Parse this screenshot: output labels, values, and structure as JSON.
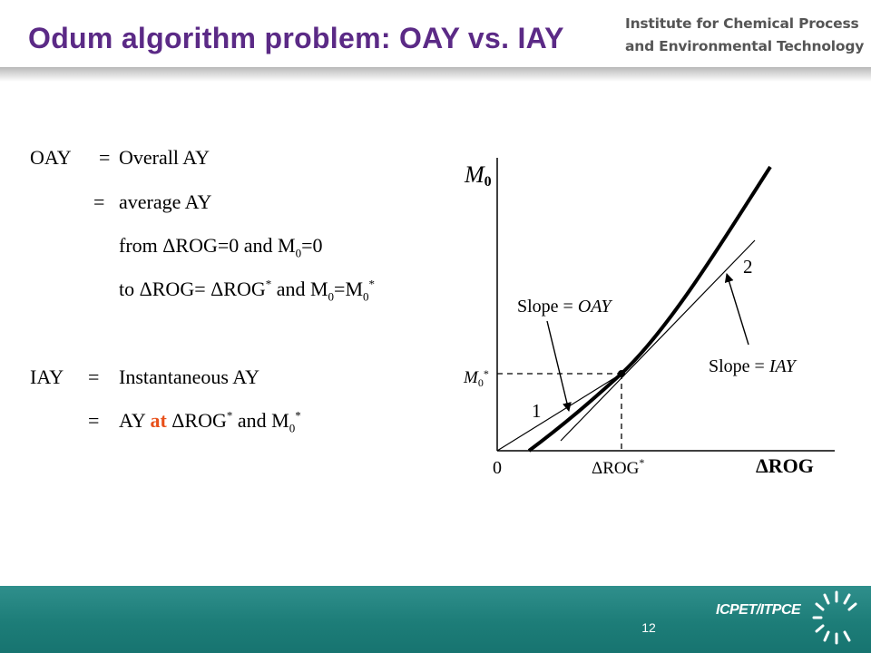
{
  "title": "Odum algorithm problem: OAY vs. IAY",
  "institute": {
    "line1": "Institute for Chemical Process",
    "line2": "and Environmental Technology"
  },
  "definitions": {
    "oay": {
      "symbol": "OAY",
      "eq": "=",
      "line1": "Overall AY",
      "line2": "average AY",
      "line3_a": "from ΔROG=0 and M",
      "line3_sub": "0",
      "line3_b": "=0",
      "line4_a": "to ΔROG= ΔROG",
      "line4_sup": "*",
      "line4_b": " and M",
      "line4_sub": "0",
      "line4_c": "=M",
      "line4_sub2": "0",
      "line4_sup2": "*"
    },
    "iay": {
      "symbol": "IAY",
      "eq": "=",
      "line1": "Instantaneous AY",
      "line2_a": "AY ",
      "line2_at": "at",
      "line2_b": " ΔROG",
      "line2_sup": "*",
      "line2_c": " and M",
      "line2_sub": "0",
      "line2_sup2": "*"
    }
  },
  "graph": {
    "y_axis_label": "M",
    "y_axis_sub": "0",
    "x_axis_label": "ΔROG",
    "origin_label": "0",
    "x_mark_label": "ΔROG",
    "x_mark_sup": "*",
    "y_mark_label": "M",
    "y_mark_sub": "0",
    "y_mark_sup": "*",
    "label_1": "1",
    "label_2": "2",
    "slope_oay_prefix": "Slope = ",
    "slope_oay_value": "OAY",
    "slope_iay_prefix": "Slope = ",
    "slope_iay_value": "IAY"
  },
  "footer": {
    "page_number": "12",
    "logo": "ICPET/ITPCE"
  },
  "colors": {
    "title": "#5b2a86",
    "accent": "#e8501a",
    "footer": "#1d7d78"
  }
}
